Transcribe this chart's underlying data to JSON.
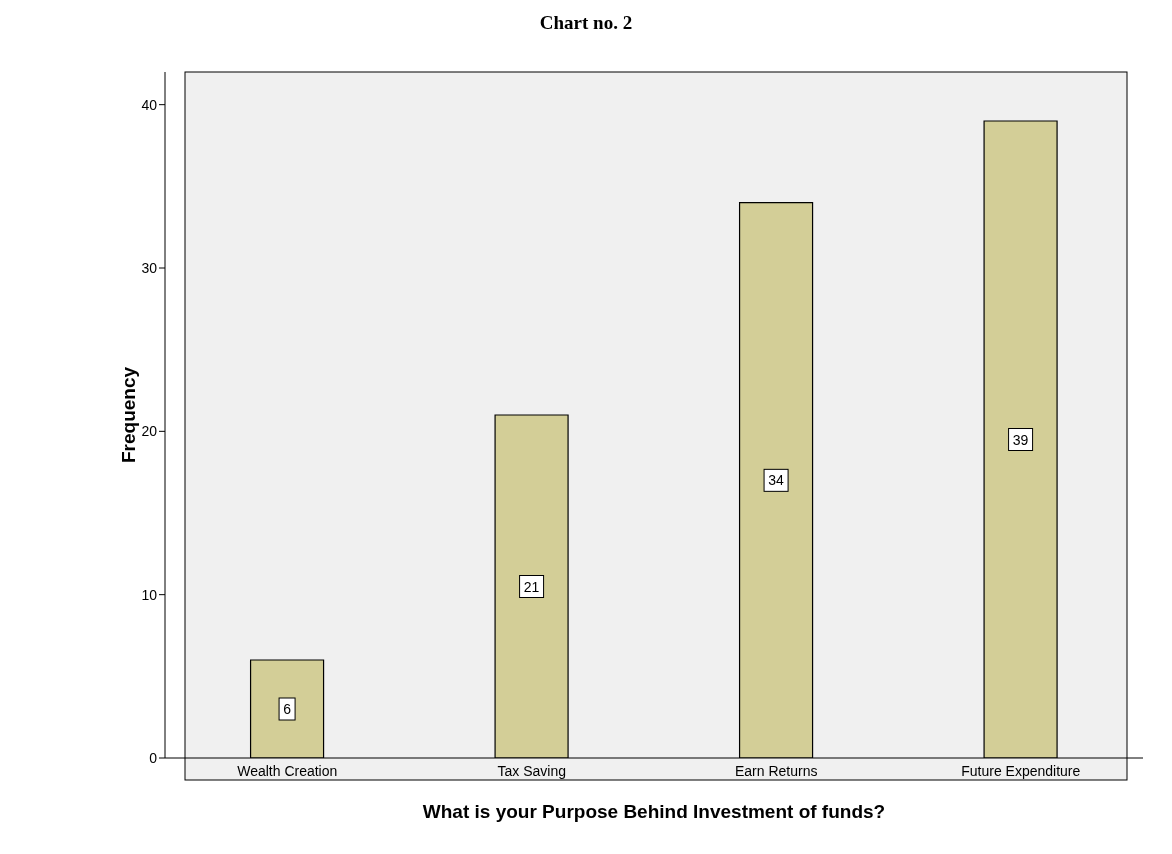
{
  "chart_data": {
    "type": "bar",
    "title": "Chart no. 2",
    "xlabel": "What is your Purpose Behind Investment of funds?",
    "ylabel": "Frequency",
    "categories": [
      "Wealth Creation",
      "Tax Saving",
      "Earn Returns",
      "Future Expenditure"
    ],
    "values": [
      6,
      21,
      34,
      39
    ],
    "color": "#d3ce97",
    "ylim": [
      0,
      42
    ],
    "yticks": [
      0,
      10,
      20,
      30,
      40
    ],
    "grid": false,
    "legend": false,
    "data_labels": true
  }
}
